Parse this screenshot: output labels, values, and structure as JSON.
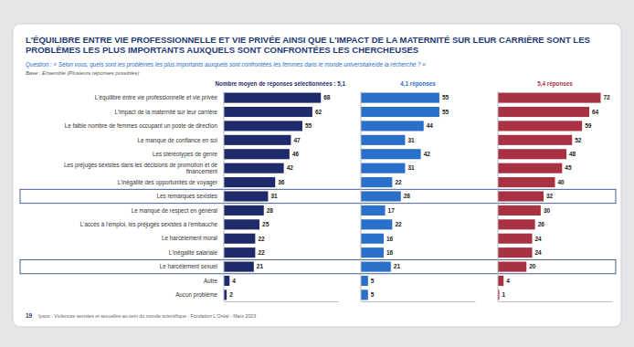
{
  "chart_data": {
    "type": "bar",
    "orientation": "horizontal",
    "title": "L'ÉQUILIBRE ENTRE VIE PROFESSIONNELLE ET VIE PRIVÉE AINSI QUE L'IMPACT DE LA MATERNITÉ SUR LEUR CARRIÈRE SONT LES PROBLÈMES LES PLUS IMPORTANTS AUXQUELS SONT CONFRONTÉES LES CHERCHEUSES",
    "subtitle": "Question : « Selon vous, quels sont les problèmes les plus importants auxquels sont confrontées les femmes dans le monde universitaire/de la recherche ? »",
    "annotations": [
      "Base : Ensemble (Plusieurs réponses possibles)",
      "19",
      "Ipsos - Violences sexistes et sexuelles au sein du monde scientifique - Fondation L'Oréal - Mars 2023"
    ],
    "categories": [
      "L'équilibre entre vie professionnelle et vie privée",
      "L'impact de la maternité sur leur carrière",
      "Le faible nombre de femmes occupant un poste de direction",
      "Le manque de confiance en soi",
      "Les stéréotypes de genre",
      "Les préjugés sexistes dans les décisions de promotion et de financement",
      "L'inégalité des opportunités de voyager",
      "Les remarques sexistes",
      "Le manque de respect en général",
      "L'accès à l'emploi, les préjugés sexistes à l'embauche",
      "Le harcèlement moral",
      "L'inégalité salariale",
      "Le harcèlement sexuel",
      "Autre",
      "Aucun problème"
    ],
    "series": [
      {
        "name": "Nombre moyen de réponses sélectionnées : 5,1",
        "color": "#1f2a6b",
        "values": [
          68,
          62,
          55,
          47,
          46,
          42,
          36,
          31,
          28,
          25,
          22,
          22,
          21,
          4,
          2
        ]
      },
      {
        "name": "4,1 réponses",
        "color": "#2a6fc9",
        "values": [
          55,
          55,
          44,
          31,
          42,
          31,
          22,
          28,
          17,
          22,
          16,
          16,
          21,
          5,
          5
        ]
      },
      {
        "name": "5,4 réponses",
        "color": "#a83244",
        "values": [
          72,
          64,
          59,
          52,
          48,
          45,
          40,
          32,
          30,
          26,
          24,
          24,
          20,
          4,
          1
        ]
      }
    ],
    "xlim": [
      0,
      80
    ],
    "data_labels": true,
    "tick_labels": false,
    "grid": false
  }
}
